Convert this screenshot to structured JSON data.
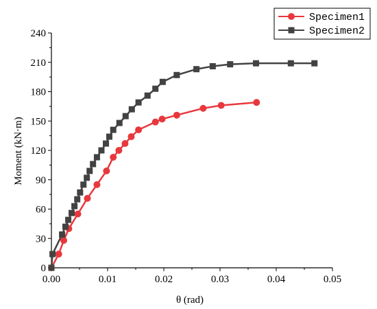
{
  "chart_data": {
    "type": "line",
    "xlabel": "θ (rad)",
    "ylabel": "Moment (kN·m)",
    "xlim": [
      0,
      0.05
    ],
    "ylim": [
      0,
      240
    ],
    "xticks": [
      "0.00",
      "0.01",
      "0.02",
      "0.03",
      "0.04",
      "0.05"
    ],
    "yticks": [
      "0",
      "30",
      "60",
      "90",
      "120",
      "150",
      "180",
      "210",
      "240"
    ],
    "xtick_values": [
      0,
      0.01,
      0.02,
      0.03,
      0.04,
      0.05
    ],
    "ytick_values": [
      0,
      30,
      60,
      90,
      120,
      150,
      180,
      210,
      240
    ],
    "grid": false,
    "legend_position": "top-right",
    "series": [
      {
        "name": "Specimen1",
        "color": "#e8383d",
        "marker": "circle",
        "x": [
          0.0,
          0.0013,
          0.0022,
          0.0031,
          0.0047,
          0.0064,
          0.0081,
          0.0098,
          0.011,
          0.012,
          0.0131,
          0.0142,
          0.0155,
          0.0185,
          0.0197,
          0.0223,
          0.027,
          0.0302,
          0.0365
        ],
        "y": [
          0,
          14,
          28,
          40,
          55,
          71,
          85,
          99,
          113,
          120,
          127,
          134,
          141,
          149,
          152,
          156,
          163,
          166,
          169
        ]
      },
      {
        "name": "Specimen2",
        "color": "#424242",
        "marker": "square",
        "x": [
          0.0,
          0.0002,
          0.0019,
          0.0025,
          0.003,
          0.0036,
          0.0041,
          0.0046,
          0.0051,
          0.0057,
          0.0063,
          0.0068,
          0.0074,
          0.0081,
          0.0089,
          0.0097,
          0.0103,
          0.011,
          0.0121,
          0.0132,
          0.0143,
          0.0155,
          0.0171,
          0.0185,
          0.0198,
          0.0223,
          0.0258,
          0.0287,
          0.0318,
          0.0364,
          0.0426,
          0.0468
        ],
        "y": [
          0,
          14,
          34,
          42,
          49,
          56,
          63,
          70,
          77,
          85,
          92,
          99,
          106,
          113,
          120,
          127,
          134,
          141,
          148,
          155,
          162,
          169,
          176,
          183,
          190,
          197,
          203,
          206,
          208,
          209,
          209,
          209
        ]
      }
    ]
  }
}
